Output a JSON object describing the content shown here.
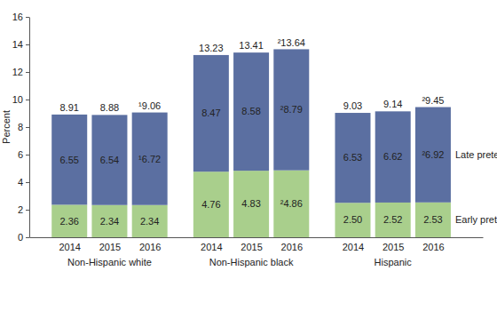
{
  "chart_data": {
    "type": "bar",
    "stacked": true,
    "data_labels": true,
    "legend": "right",
    "ylabel": "Percent",
    "ylim": [
      0,
      16
    ],
    "yticks": [
      0,
      2,
      4,
      6,
      8,
      10,
      12,
      14,
      16
    ],
    "categories": [
      "2014",
      "2015",
      "2016",
      "2014",
      "2015",
      "2016",
      "2014",
      "2015",
      "2016"
    ],
    "groups": [
      "Non-Hispanic white",
      "Non-Hispanic black",
      "Hispanic"
    ],
    "series": [
      {
        "name": "Early preterm",
        "color": "#a9cf8c",
        "values": [
          2.36,
          2.34,
          2.34,
          4.76,
          4.83,
          4.86,
          2.5,
          2.52,
          2.53
        ],
        "value_labels": [
          "2.36",
          "2.34",
          "2.34",
          "4.76",
          "4.83",
          "²4.86",
          "2.50",
          "2.52",
          "2.53"
        ]
      },
      {
        "name": "Late preterm",
        "color": "#5b6fa1",
        "values": [
          6.55,
          6.54,
          6.72,
          8.47,
          8.58,
          8.79,
          6.53,
          6.62,
          6.92
        ],
        "value_labels": [
          "6.55",
          "6.54",
          "¹6.72",
          "8.47",
          "8.58",
          "²8.79",
          "6.53",
          "6.62",
          "²6.92"
        ]
      }
    ],
    "totals": {
      "values": [
        8.91,
        8.88,
        9.06,
        13.23,
        13.41,
        13.64,
        9.03,
        9.14,
        9.45
      ],
      "value_labels": [
        "8.91",
        "8.88",
        "¹9.06",
        "13.23",
        "13.41",
        "²13.64",
        "9.03",
        "9.14",
        "²9.45"
      ]
    }
  }
}
